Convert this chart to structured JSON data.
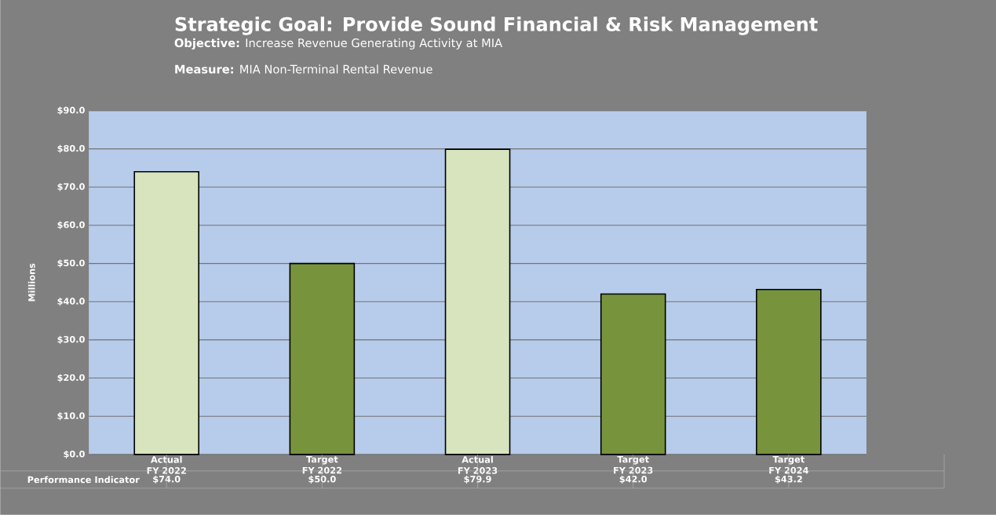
{
  "chart_data": {
    "type": "bar",
    "title": "Strategic Goal: Provide Sound Financial & Risk Management",
    "subtitle": "**Objective:** Increase Revenue Generating Activity at MIA",
    "annotations": [
      "**Measure:** MIA Non-Terminal Rental Revenue",
      "Performance Indicator"
    ],
    "ylabel": "Millions",
    "categories": [
      "Actual FY 2022",
      "Target FY 2022",
      "Actual FY 2023",
      "Target FY 2023",
      "Target FY 2024"
    ],
    "values": [
      74.0,
      50.0,
      79.9,
      42.0,
      43.2
    ],
    "value_labels": [
      "$74.0",
      "$50.0",
      "$79.9",
      "$42.0",
      "$43.2"
    ],
    "colors": [
      "#d7e4bd",
      "#77933c",
      "#d7e4bd",
      "#77933c",
      "#77933c"
    ],
    "ylim": [
      0,
      90
    ],
    "yticks": [
      {
        "value": 0,
        "label": "$0.0"
      },
      {
        "value": 10,
        "label": "$10.0"
      },
      {
        "value": 20,
        "label": "$20.0"
      },
      {
        "value": 30,
        "label": "$30.0"
      },
      {
        "value": 40,
        "label": "$40.0"
      },
      {
        "value": 50,
        "label": "$50.0"
      },
      {
        "value": 60,
        "label": "$60.0"
      },
      {
        "value": 70,
        "label": "$70.0"
      },
      {
        "value": 80,
        "label": "$80.0"
      },
      {
        "value": 90,
        "label": "$90.0"
      }
    ],
    "grid": "y"
  }
}
